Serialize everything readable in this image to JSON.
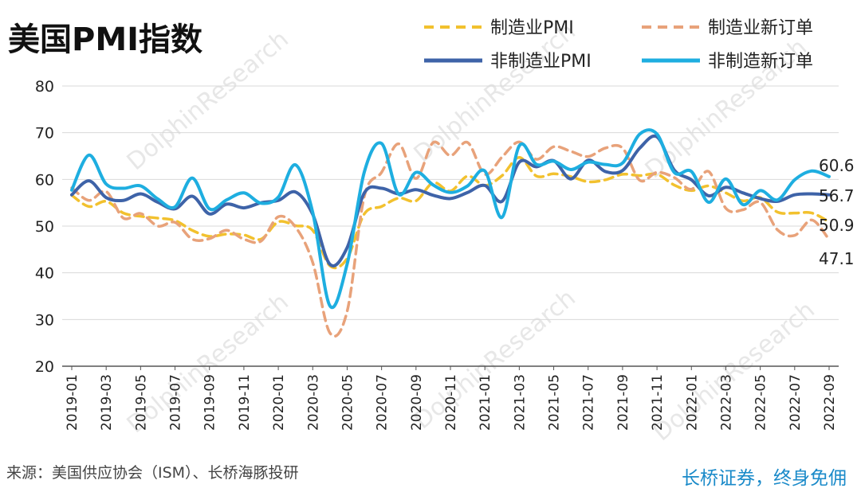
{
  "chart_data": {
    "type": "line",
    "title": "美国PMI指数",
    "xlabel": "",
    "ylabel": "",
    "ylim": [
      20,
      80
    ],
    "yticks": [
      20,
      30,
      40,
      50,
      60,
      70,
      80
    ],
    "x": [
      "2019-01",
      "2019-02",
      "2019-03",
      "2019-04",
      "2019-05",
      "2019-06",
      "2019-07",
      "2019-08",
      "2019-09",
      "2019-10",
      "2019-11",
      "2019-12",
      "2020-01",
      "2020-02",
      "2020-03",
      "2020-04",
      "2020-05",
      "2020-06",
      "2020-07",
      "2020-08",
      "2020-09",
      "2020-10",
      "2020-11",
      "2020-12",
      "2021-01",
      "2021-02",
      "2021-03",
      "2021-04",
      "2021-05",
      "2021-06",
      "2021-07",
      "2021-08",
      "2021-09",
      "2021-10",
      "2021-11",
      "2021-12",
      "2022-01",
      "2022-02",
      "2022-03",
      "2022-04",
      "2022-05",
      "2022-06",
      "2022-07",
      "2022-08",
      "2022-09"
    ],
    "xtick_labels": [
      "2019-01",
      "2019-03",
      "2019-05",
      "2019-07",
      "2019-09",
      "2019-11",
      "2020-01",
      "2020-03",
      "2020-05",
      "2020-07",
      "2020-09",
      "2020-11",
      "2021-01",
      "2021-03",
      "2021-05",
      "2021-07",
      "2021-09",
      "2021-11",
      "2022-01",
      "2022-03",
      "2022-05",
      "2022-07",
      "2022-09"
    ],
    "grid": true,
    "legend_position": "top-right",
    "series": [
      {
        "name": "制造业PMI",
        "color": "#f2c12e",
        "dash": "dashed",
        "values": [
          56.6,
          54.2,
          55.3,
          52.8,
          52.1,
          51.7,
          51.2,
          49.1,
          47.8,
          48.3,
          48.1,
          47.2,
          50.9,
          50.1,
          49.1,
          41.5,
          43.1,
          52.6,
          54.2,
          56.0,
          55.4,
          59.3,
          57.5,
          60.7,
          58.7,
          60.8,
          64.7,
          60.7,
          61.2,
          60.6,
          59.5,
          59.9,
          61.1,
          60.8,
          61.1,
          58.8,
          57.6,
          58.6,
          57.1,
          55.4,
          56.1,
          53.0,
          52.8,
          52.8,
          50.9
        ]
      },
      {
        "name": "制造业新订单",
        "color": "#e8a27a",
        "dash": "dashed",
        "values": [
          58.2,
          55.5,
          57.4,
          51.7,
          52.7,
          50.0,
          50.8,
          47.2,
          47.3,
          49.1,
          47.2,
          46.8,
          52.0,
          49.8,
          42.2,
          27.1,
          31.8,
          56.4,
          61.5,
          67.6,
          60.2,
          67.9,
          65.1,
          67.9,
          61.1,
          64.8,
          68.0,
          64.3,
          67.0,
          66.0,
          64.9,
          66.7,
          66.7,
          59.8,
          61.5,
          60.4,
          57.9,
          61.7,
          53.8,
          53.5,
          55.1,
          49.2,
          48.0,
          51.3,
          47.1
        ]
      },
      {
        "name": "非制造业PMI",
        "color": "#3e63a8",
        "dash": "solid",
        "values": [
          56.7,
          59.7,
          56.1,
          55.5,
          56.9,
          55.1,
          53.7,
          56.4,
          52.6,
          54.7,
          53.9,
          55.0,
          55.5,
          57.3,
          52.5,
          41.8,
          45.4,
          57.1,
          58.1,
          56.9,
          57.8,
          56.6,
          55.9,
          57.2,
          58.7,
          55.3,
          63.7,
          62.7,
          64.0,
          60.1,
          64.1,
          61.7,
          61.9,
          66.7,
          69.1,
          62.0,
          59.9,
          56.5,
          58.3,
          57.1,
          55.9,
          55.3,
          56.7,
          56.9,
          56.7
        ]
      },
      {
        "name": "非制造新订单",
        "color": "#1eaee0",
        "dash": "solid",
        "values": [
          57.7,
          65.2,
          59.0,
          58.1,
          58.6,
          55.8,
          54.1,
          60.3,
          53.7,
          55.6,
          57.1,
          54.9,
          56.2,
          63.1,
          52.9,
          32.9,
          41.9,
          61.6,
          67.7,
          56.8,
          61.5,
          58.8,
          57.2,
          58.6,
          61.8,
          51.9,
          67.2,
          63.2,
          63.9,
          62.1,
          63.7,
          63.2,
          63.5,
          69.7,
          69.7,
          61.5,
          61.7,
          55.1,
          60.1,
          54.6,
          57.6,
          55.6,
          59.9,
          61.8,
          60.6
        ]
      }
    ],
    "end_labels": [
      "60.6",
      "56.7",
      "50.9",
      "47.1"
    ]
  },
  "footer": {
    "source": "来源：美国供应协会（ISM）、长桥海豚投研",
    "brand": "长桥证券，终身免佣"
  },
  "watermark": {
    "text": "DolphinResearch"
  },
  "colors": {
    "grid": "#d9d9d9",
    "axis": "#555555"
  }
}
